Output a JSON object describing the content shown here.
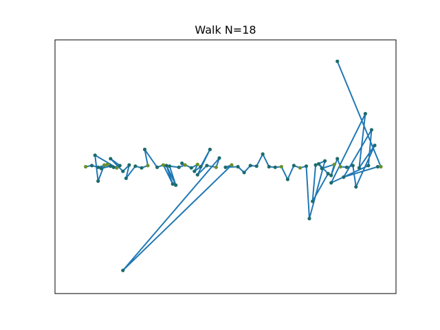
{
  "chart_data": {
    "type": "line",
    "title": "Walk N=18",
    "xlabel": "",
    "ylabel": "",
    "xticks": "hidden",
    "yticks": "hidden",
    "grid": false,
    "legend": "none",
    "xlim": [
      0,
      100
    ],
    "ylim": [
      -200,
      200
    ],
    "colors": {
      "line": "#1f77b4",
      "marker": "#1d6b6b",
      "marker_highlight": "#6a8f2a"
    },
    "series": [
      {
        "values": [
          [
            5,
            0
          ],
          [
            7,
            2
          ],
          [
            9,
            -1
          ],
          [
            12,
            4
          ],
          [
            10,
            -3
          ],
          [
            13,
            1
          ],
          [
            15,
            -2
          ],
          [
            8,
            20
          ],
          [
            9,
            -25
          ],
          [
            11,
            3
          ],
          [
            14,
            -1
          ],
          [
            16,
            2
          ],
          [
            13,
            14
          ],
          [
            17,
            -8
          ],
          [
            19,
            3
          ],
          [
            18,
            -20
          ],
          [
            21,
            1
          ],
          [
            23,
            -2
          ],
          [
            25,
            2
          ],
          [
            24,
            30
          ],
          [
            28,
            -1
          ],
          [
            30,
            3
          ],
          [
            33,
            -30
          ],
          [
            31,
            2
          ],
          [
            34,
            -32
          ],
          [
            32,
            1
          ],
          [
            35,
            -1
          ],
          [
            37,
            3
          ],
          [
            36,
            6
          ],
          [
            39,
            -2
          ],
          [
            41,
            4
          ],
          [
            40,
            -8
          ],
          [
            42,
            0
          ],
          [
            45,
            30
          ],
          [
            41,
            -14
          ],
          [
            44,
            2
          ],
          [
            47,
            -1
          ],
          [
            48,
            15
          ],
          [
            17,
            -180
          ],
          [
            52,
            3
          ],
          [
            50,
            -1
          ],
          [
            54,
            0
          ],
          [
            56,
            -10
          ],
          [
            58,
            2
          ],
          [
            60,
            1
          ],
          [
            62,
            22
          ],
          [
            64,
            0
          ],
          [
            66,
            -1
          ],
          [
            68,
            0
          ],
          [
            70,
            -22
          ],
          [
            72,
            2
          ],
          [
            74,
            -2
          ],
          [
            76,
            1
          ],
          [
            77,
            -90
          ],
          [
            82,
            10
          ],
          [
            79,
            3
          ],
          [
            78,
            -60
          ],
          [
            83,
            -12
          ],
          [
            80,
            5
          ],
          [
            81,
            -3
          ],
          [
            85,
            4
          ],
          [
            84,
            -15
          ],
          [
            86,
            14
          ],
          [
            87,
            0
          ],
          [
            89,
            -1
          ],
          [
            91,
            2
          ],
          [
            92,
            -35
          ],
          [
            98,
            37
          ],
          [
            93,
            -2
          ],
          [
            95,
            92
          ],
          [
            84,
            -28
          ],
          [
            96,
            2
          ],
          [
            97,
            64
          ],
          [
            88,
            -18
          ],
          [
            99,
            0
          ],
          [
            100,
            0
          ],
          [
            86,
            183
          ]
        ]
      }
    ]
  }
}
